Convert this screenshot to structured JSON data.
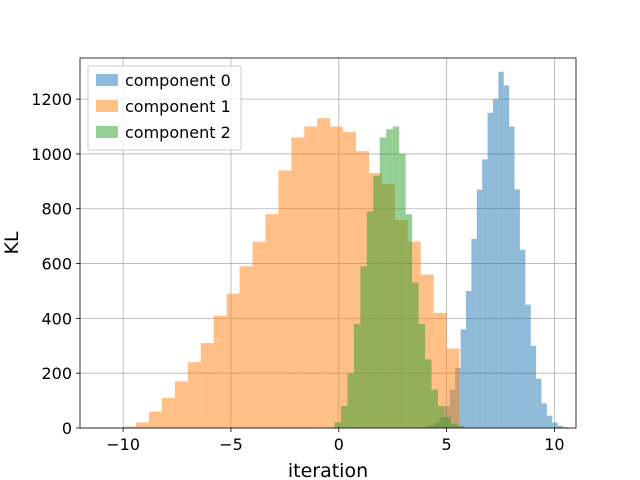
{
  "chart_data": {
    "type": "bar",
    "subtype": "histogram",
    "title": "",
    "xlabel": "iteration",
    "ylabel": "KL",
    "xlim": [
      -12,
      11
    ],
    "ylim": [
      0,
      1350
    ],
    "xticks": [
      -10,
      -5,
      0,
      5,
      10
    ],
    "xtick_labels": [
      "−10",
      "−5",
      "0",
      "5",
      "10"
    ],
    "yticks": [
      0,
      200,
      400,
      600,
      800,
      1000,
      1200
    ],
    "grid": true,
    "legend_position": "top-left",
    "series": [
      {
        "name": "component 0",
        "color": "#1f77b4",
        "opacity": 0.5,
        "bin_start": 3.9,
        "bin_width": 0.25,
        "counts": [
          5,
          10,
          20,
          40,
          80,
          140,
          220,
          360,
          500,
          690,
          870,
          980,
          1150,
          1200,
          1300,
          1250,
          1100,
          870,
          650,
          450,
          300,
          180,
          90,
          45,
          20,
          8,
          3
        ]
      },
      {
        "name": "component 1",
        "color": "#ff7f0e",
        "opacity": 0.5,
        "bin_start": -10.0,
        "bin_width": 0.6,
        "counts": [
          5,
          20,
          60,
          110,
          170,
          240,
          310,
          410,
          490,
          590,
          680,
          780,
          940,
          1060,
          1100,
          1130,
          1100,
          1080,
          1010,
          930,
          890,
          760,
          680,
          560,
          420,
          290
        ]
      },
      {
        "name": "component 2",
        "color": "#2ca02c",
        "opacity": 0.5,
        "bin_start": -0.2,
        "bin_width": 0.3,
        "counts": [
          20,
          80,
          200,
          380,
          590,
          790,
          920,
          1060,
          1090,
          1100,
          1000,
          780,
          530,
          380,
          250,
          140,
          80,
          40,
          15,
          8
        ]
      }
    ]
  }
}
